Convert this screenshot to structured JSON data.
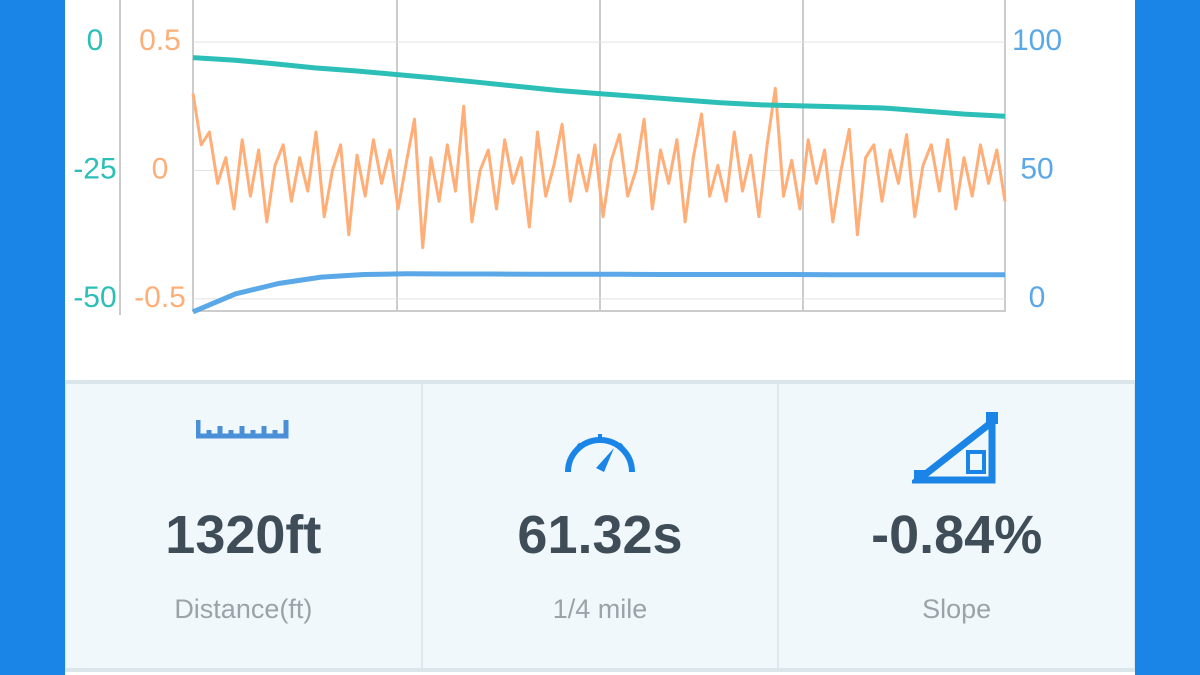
{
  "chart_data": {
    "type": "line",
    "ylim": [
      -52.3,
      8.2
    ],
    "yticks": [
      0,
      -25,
      -50
    ],
    "y2lim": [
      -0.547,
      0.664
    ],
    "y2ticks": [
      0.5,
      0,
      -0.5
    ],
    "y3lim": [
      -4.7,
      116.4
    ],
    "y3ticks": [
      100,
      50,
      0
    ],
    "series": [
      {
        "color": "#2bbfb8",
        "axis": "y",
        "values": [
          -3,
          -3.5,
          -4.2,
          -5,
          -5.6,
          -6.3,
          -7,
          -7.8,
          -8.6,
          -9.4,
          -10,
          -10.6,
          -11.2,
          -11.8,
          -12.2,
          -12.4,
          -12.6,
          -12.8,
          -13.4,
          -14,
          -14.4
        ]
      },
      {
        "color": "#ffae78",
        "axis": "y2",
        "values": [
          0.3,
          0.1,
          0.15,
          -0.05,
          0.05,
          -0.15,
          0.12,
          -0.1,
          0.08,
          -0.2,
          0.02,
          0.1,
          -0.12,
          0.05,
          -0.08,
          0.15,
          -0.18,
          0.0,
          0.1,
          -0.25,
          0.06,
          -0.1,
          0.12,
          -0.05,
          0.08,
          -0.15,
          0.03,
          0.2,
          -0.3,
          0.05,
          -0.12,
          0.1,
          -0.08,
          0.25,
          -0.2,
          0.0,
          0.08,
          -0.15,
          0.12,
          -0.05,
          0.05,
          -0.22,
          0.15,
          -0.1,
          0.02,
          0.18,
          -0.12,
          0.06,
          -0.08,
          0.1,
          -0.18,
          0.04,
          0.14,
          -0.1,
          0.0,
          0.2,
          -0.15,
          0.08,
          -0.05,
          0.12,
          -0.2,
          0.05,
          0.22,
          -0.1,
          0.02,
          -0.12,
          0.15,
          -0.08,
          0.06,
          -0.18,
          0.1,
          0.32,
          -0.1,
          0.04,
          -0.15,
          0.12,
          -0.05,
          0.08,
          -0.2,
          0.0,
          0.16,
          -0.25,
          0.05,
          0.1,
          -0.12,
          0.08,
          -0.05,
          0.14,
          -0.18,
          0.02,
          0.1,
          -0.08,
          0.12,
          -0.15,
          0.05,
          -0.1,
          0.1,
          -0.05,
          0.08,
          -0.12
        ]
      },
      {
        "color": "#5aa8e8",
        "axis": "y3",
        "values": [
          -5,
          2,
          6,
          8.5,
          9.5,
          9.8,
          9.7,
          9.7,
          9.6,
          9.6,
          9.6,
          9.5,
          9.5,
          9.5,
          9.5,
          9.4,
          9.4,
          9.4,
          9.4,
          9.4
        ]
      }
    ]
  },
  "stats": [
    {
      "value": "1320ft",
      "label": "Distance(ft)"
    },
    {
      "value": "61.32s",
      "label": "1/4 mile"
    },
    {
      "value": "-0.84%",
      "label": "Slope"
    }
  ]
}
